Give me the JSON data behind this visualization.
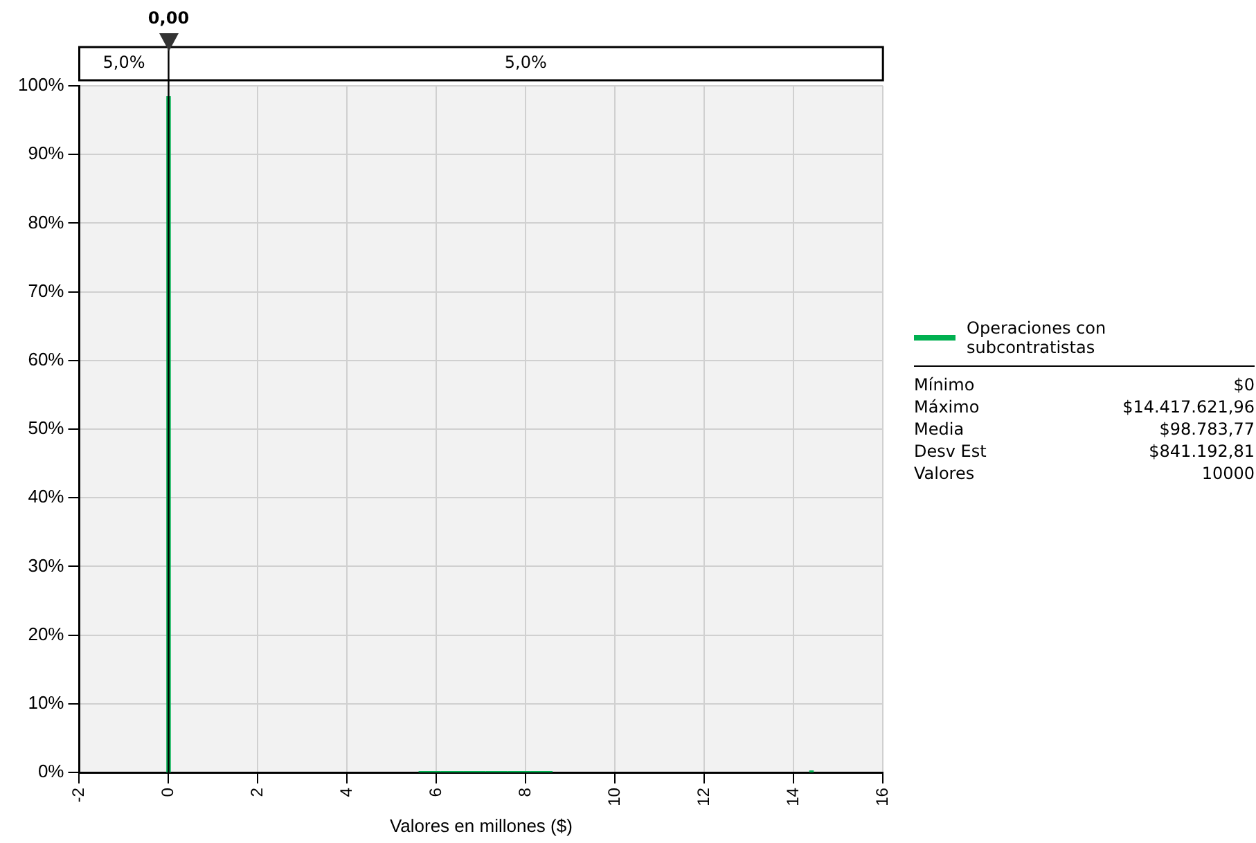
{
  "chart_data": {
    "type": "histogram",
    "xlabel": "Valores en millones ($)",
    "bins": [
      -0.05,
      0.05,
      5.6,
      6.1,
      6.6,
      7.1,
      7.6,
      8.1,
      8.6,
      14.35,
      14.45
    ],
    "series": [
      {
        "name": "Operaciones con subcontratistas",
        "color": "#00b050",
        "values": [
          98.5,
          0,
          0.2,
          0.2,
          0.2,
          0.2,
          0.2,
          0.2,
          0,
          0.3
        ]
      }
    ],
    "xlim": [
      -2,
      16
    ],
    "xticks": [
      -2,
      0,
      2,
      4,
      6,
      8,
      10,
      12,
      14,
      16
    ],
    "ylim": [
      0,
      100
    ],
    "yticks": [
      {
        "value": 0,
        "label": "0%"
      },
      {
        "value": 10,
        "label": "10%"
      },
      {
        "value": 20,
        "label": "20%"
      },
      {
        "value": 30,
        "label": "30%"
      },
      {
        "value": 40,
        "label": "40%"
      },
      {
        "value": 50,
        "label": "50%"
      },
      {
        "value": 60,
        "label": "60%"
      },
      {
        "value": 70,
        "label": "70%"
      },
      {
        "value": 80,
        "label": "80%"
      },
      {
        "value": 90,
        "label": "90%"
      },
      {
        "value": 100,
        "label": "100%"
      }
    ],
    "ref_lines": [
      {
        "axis": "x",
        "value": 0,
        "label": "0,00",
        "color": "#000000"
      }
    ],
    "annotations": [
      "5,0%",
      "5,0%",
      "Mínimo",
      "$0",
      "Máximo",
      "$14.417.621,96",
      "Media",
      "$98.783,77",
      "Desv Est",
      "$841.192,81",
      "Valores",
      "10000"
    ],
    "grid": true,
    "legend": "right"
  }
}
